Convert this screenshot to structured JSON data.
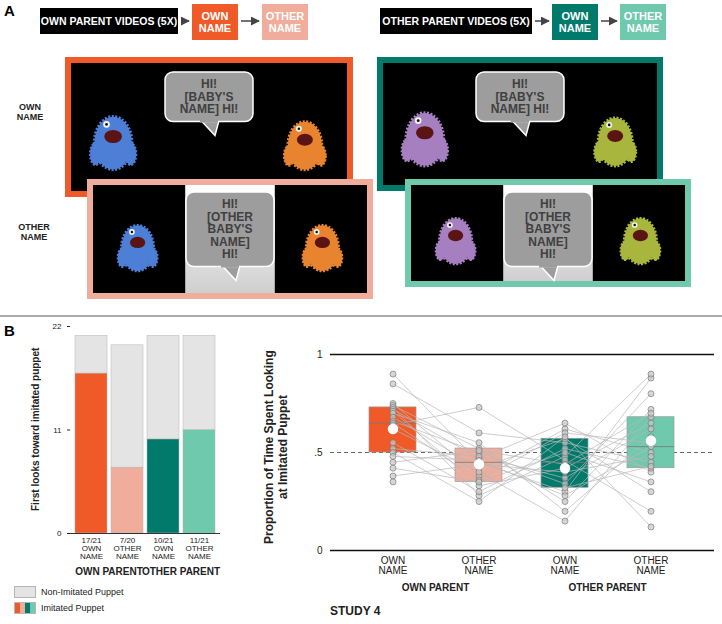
{
  "panel_a": {
    "label": "A",
    "row_labels": [
      "OWN NAME",
      "OTHER NAME"
    ],
    "sequences": [
      {
        "header": "OWN PARENT VIDEOS (5X)",
        "steps": [
          "OWN NAME",
          "OTHER NAME"
        ],
        "colors": [
          "#f05a28",
          "#f1ad9c"
        ],
        "speech": [
          [
            "HI!",
            "[BABY'S",
            "NAME] HI!"
          ],
          [
            "HI!",
            "[OTHER",
            "BABY'S",
            "NAME]",
            "HI!"
          ]
        ]
      },
      {
        "header": "OTHER PARENT VIDEOS (5X)",
        "steps": [
          "OWN NAME",
          "OTHER NAME"
        ],
        "colors": [
          "#017a6c",
          "#6ec9ad"
        ],
        "speech": [
          [
            "HI!",
            "[BABY'S",
            "NAME] HI!"
          ],
          [
            "HI!",
            "[OTHER",
            "BABY'S",
            "NAME]",
            "HI!"
          ]
        ]
      }
    ]
  },
  "panel_b": {
    "label": "B",
    "caption": "STUDY 4"
  },
  "chart_data": [
    {
      "type": "bar",
      "stacked": true,
      "categories": [
        "OWN NAME",
        "OTHER NAME",
        "OWN NAME",
        "OTHER NAME"
      ],
      "category_counts": [
        "17/21",
        "7/20",
        "10/21",
        "11/21"
      ],
      "groups": [
        "OWN PARENT",
        "OWN PARENT",
        "OTHER PARENT",
        "OTHER PARENT"
      ],
      "series": [
        {
          "name": "Imitated Puppet",
          "colors": [
            "#f05a28",
            "#f1ad9c",
            "#017a6c",
            "#6ec9ad"
          ],
          "values": [
            17,
            7,
            10,
            11
          ]
        },
        {
          "name": "Non-Imitated Puppet",
          "color": "#e4e4e4",
          "values": [
            4,
            13,
            11,
            10
          ]
        }
      ],
      "ylabel": "First looks toward imitated puppet",
      "ylim": [
        0,
        22
      ],
      "yticks": [
        0,
        11,
        22
      ],
      "legend": "bottom-left"
    },
    {
      "type": "box",
      "categories": [
        "OWN NAME",
        "OTHER NAME",
        "OWN NAME",
        "OTHER NAME"
      ],
      "groups": [
        "OWN PARENT",
        "OWN PARENT",
        "OTHER PARENT",
        "OTHER PARENT"
      ],
      "colors": [
        "#f05a28",
        "#f1ad9c",
        "#017a6c",
        "#6ec9ad"
      ],
      "ylabel": "Proportion of Time Spent Looking at Imitated Puppet",
      "ylim": [
        0,
        1
      ],
      "yticks": [
        0,
        {
          "value": 0.5,
          "label": ".5"
        },
        1
      ],
      "reference_line": 0.5,
      "q1": [
        0.5,
        0.35,
        0.32,
        0.42
      ],
      "median": [
        0.65,
        0.45,
        0.45,
        0.53
      ],
      "q3": [
        0.73,
        0.52,
        0.57,
        0.68
      ],
      "mean": [
        0.62,
        0.44,
        0.42,
        0.56
      ],
      "participants": [
        [
          0.9,
          0.45,
          0.3,
          0.88
        ],
        [
          0.85,
          0.6,
          0.55,
          0.45
        ],
        [
          0.75,
          0.38,
          0.62,
          0.5
        ],
        [
          0.74,
          0.52,
          0.25,
          0.72
        ],
        [
          0.73,
          0.28,
          0.48,
          0.9
        ],
        [
          0.72,
          0.47,
          0.65,
          0.4
        ],
        [
          0.71,
          0.33,
          0.42,
          0.65
        ],
        [
          0.7,
          0.55,
          0.2,
          0.58
        ],
        [
          0.68,
          0.42,
          0.57,
          0.3
        ],
        [
          0.66,
          0.5,
          0.34,
          0.8
        ],
        [
          0.65,
          0.36,
          0.6,
          0.55
        ],
        [
          0.64,
          0.73,
          0.46,
          0.2
        ],
        [
          0.62,
          0.4,
          0.15,
          0.68
        ],
        [
          0.55,
          0.3,
          0.52,
          0.42
        ],
        [
          0.52,
          0.48,
          0.37,
          0.62
        ],
        [
          0.5,
          0.25,
          0.58,
          0.12
        ],
        [
          0.48,
          0.46,
          0.28,
          0.53
        ],
        [
          0.45,
          0.51,
          0.44,
          0.7
        ],
        [
          0.42,
          0.35,
          0.5,
          0.35
        ],
        [
          0.38,
          0.44,
          0.4,
          0.48
        ],
        [
          0.35,
          null,
          0.32,
          0.43
        ]
      ]
    }
  ]
}
